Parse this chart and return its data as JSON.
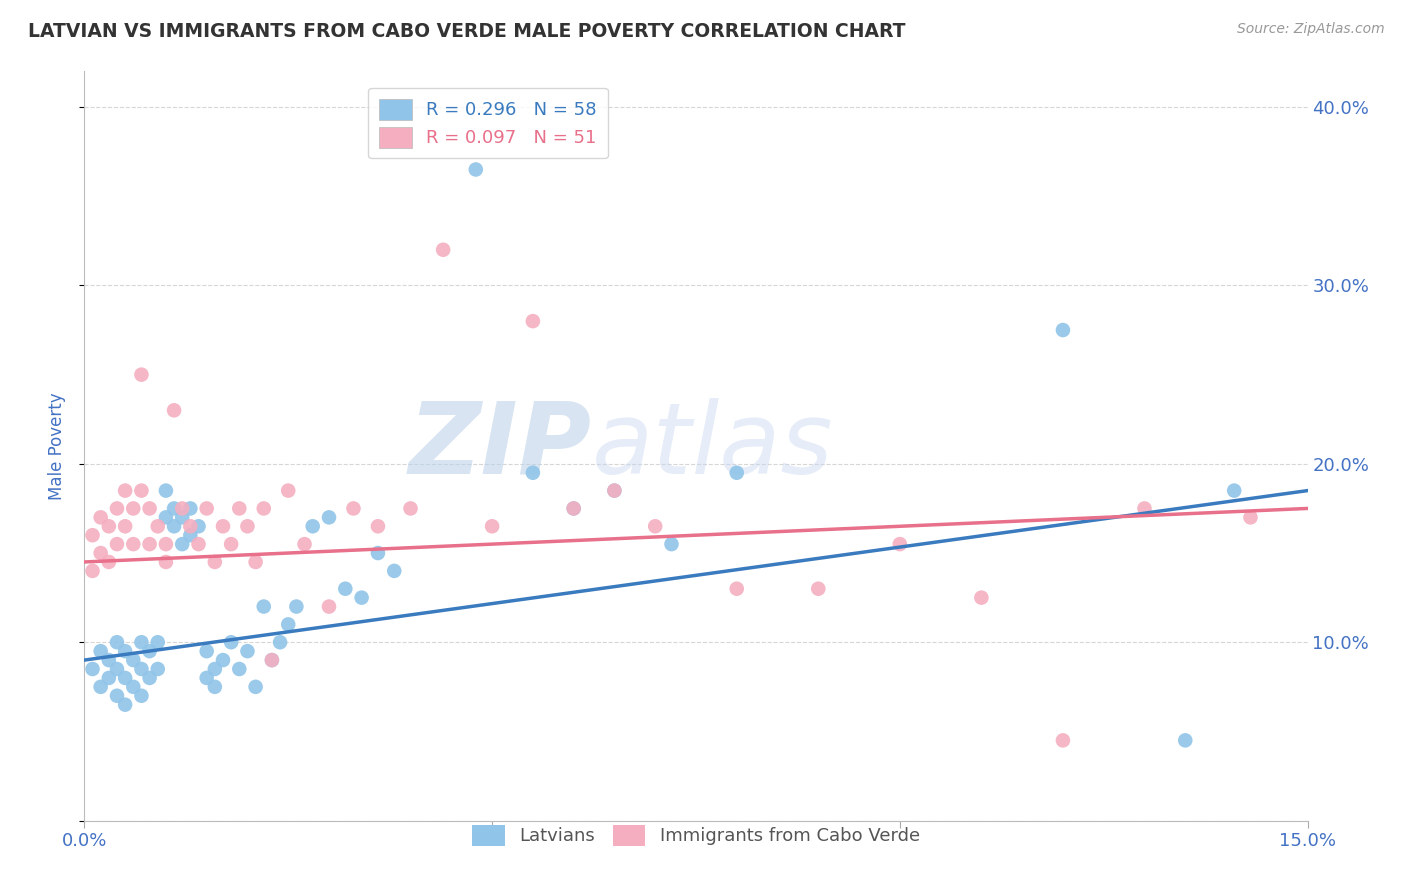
{
  "title": "LATVIAN VS IMMIGRANTS FROM CABO VERDE MALE POVERTY CORRELATION CHART",
  "source": "Source: ZipAtlas.com",
  "ylabel": "Male Poverty",
  "xlim": [
    0.0,
    0.15
  ],
  "ylim": [
    0.0,
    0.42
  ],
  "x_ticks": [
    0.0,
    0.05,
    0.1,
    0.15
  ],
  "y_ticks": [
    0.0,
    0.1,
    0.2,
    0.3,
    0.4
  ],
  "latvian_color": "#90c4e8",
  "cabo_verde_color": "#f4aec0",
  "latvian_line_color": "#3a7bbf",
  "cabo_verde_line_color": "#e8708a",
  "legend_latvian_label": "R = 0.296   N = 58",
  "legend_cabo_verde_label": "R = 0.097   N = 51",
  "watermark_text": "ZIPatlas",
  "background_color": "#ffffff",
  "grid_color": "#cccccc",
  "title_color": "#333333",
  "tick_label_color": "#4472c4",
  "axis_label_color": "#4472c4",
  "latvian_x": [
    0.001,
    0.002,
    0.002,
    0.003,
    0.003,
    0.004,
    0.004,
    0.004,
    0.005,
    0.005,
    0.005,
    0.006,
    0.006,
    0.007,
    0.007,
    0.007,
    0.008,
    0.008,
    0.009,
    0.009,
    0.01,
    0.01,
    0.011,
    0.011,
    0.012,
    0.012,
    0.013,
    0.013,
    0.014,
    0.015,
    0.015,
    0.016,
    0.016,
    0.017,
    0.018,
    0.019,
    0.02,
    0.021,
    0.022,
    0.023,
    0.024,
    0.025,
    0.026,
    0.028,
    0.03,
    0.032,
    0.034,
    0.036,
    0.038,
    0.048,
    0.055,
    0.06,
    0.065,
    0.072,
    0.08,
    0.12,
    0.135,
    0.141
  ],
  "latvian_y": [
    0.085,
    0.095,
    0.075,
    0.09,
    0.08,
    0.1,
    0.085,
    0.07,
    0.095,
    0.08,
    0.065,
    0.09,
    0.075,
    0.1,
    0.085,
    0.07,
    0.095,
    0.08,
    0.1,
    0.085,
    0.17,
    0.185,
    0.175,
    0.165,
    0.155,
    0.17,
    0.16,
    0.175,
    0.165,
    0.08,
    0.095,
    0.085,
    0.075,
    0.09,
    0.1,
    0.085,
    0.095,
    0.075,
    0.12,
    0.09,
    0.1,
    0.11,
    0.12,
    0.165,
    0.17,
    0.13,
    0.125,
    0.15,
    0.14,
    0.365,
    0.195,
    0.175,
    0.185,
    0.155,
    0.195,
    0.275,
    0.045,
    0.185
  ],
  "cabo_verde_x": [
    0.001,
    0.001,
    0.002,
    0.002,
    0.003,
    0.003,
    0.004,
    0.004,
    0.005,
    0.005,
    0.006,
    0.006,
    0.007,
    0.007,
    0.008,
    0.008,
    0.009,
    0.01,
    0.01,
    0.011,
    0.012,
    0.013,
    0.014,
    0.015,
    0.016,
    0.017,
    0.018,
    0.019,
    0.02,
    0.021,
    0.022,
    0.023,
    0.025,
    0.027,
    0.03,
    0.033,
    0.036,
    0.04,
    0.044,
    0.05,
    0.055,
    0.06,
    0.065,
    0.07,
    0.08,
    0.09,
    0.1,
    0.11,
    0.12,
    0.13,
    0.143
  ],
  "cabo_verde_y": [
    0.16,
    0.14,
    0.17,
    0.15,
    0.165,
    0.145,
    0.175,
    0.155,
    0.185,
    0.165,
    0.175,
    0.155,
    0.25,
    0.185,
    0.175,
    0.155,
    0.165,
    0.155,
    0.145,
    0.23,
    0.175,
    0.165,
    0.155,
    0.175,
    0.145,
    0.165,
    0.155,
    0.175,
    0.165,
    0.145,
    0.175,
    0.09,
    0.185,
    0.155,
    0.12,
    0.175,
    0.165,
    0.175,
    0.32,
    0.165,
    0.28,
    0.175,
    0.185,
    0.165,
    0.13,
    0.13,
    0.155,
    0.125,
    0.045,
    0.175,
    0.17
  ],
  "lat_line_x": [
    0.0,
    0.15
  ],
  "lat_line_y": [
    0.09,
    0.185
  ],
  "cabo_line_x": [
    0.0,
    0.15
  ],
  "cabo_line_y": [
    0.145,
    0.175
  ]
}
